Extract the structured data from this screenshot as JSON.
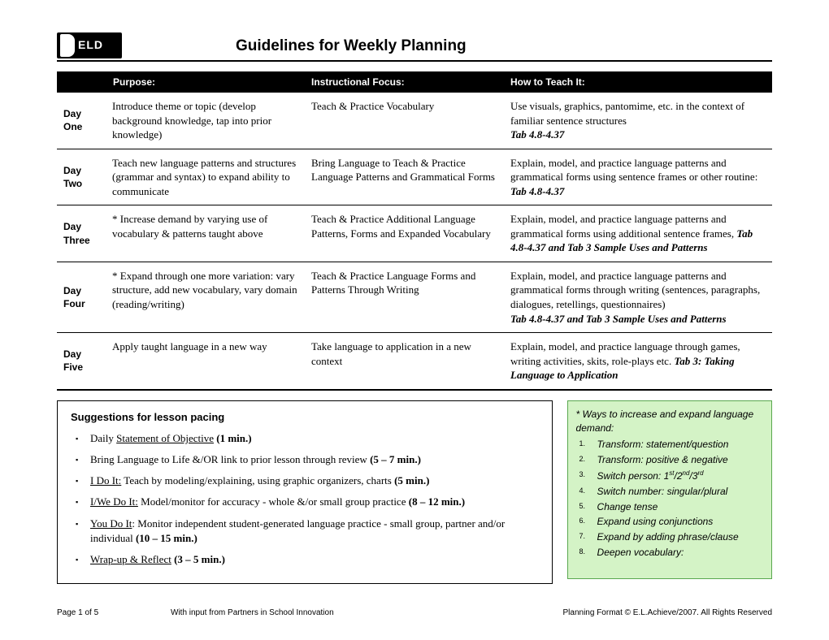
{
  "title": "Guidelines for Weekly Planning",
  "columns": {
    "c1": "",
    "c2": "Purpose:",
    "c3": "Instructional Focus:",
    "c4": "How to Teach It:"
  },
  "rows": [
    {
      "day": "Day One",
      "purpose": "Introduce theme or topic (develop background knowledge, tap into prior knowledge)",
      "focus": "Teach & Practice Vocabulary",
      "how": "Use visuals, graphics, pantomime, etc. in the context of familiar sentence structures",
      "tab": "Tab 4.8-4.37"
    },
    {
      "day": "Day Two",
      "purpose": "Teach new language patterns and structures (grammar and syntax) to expand ability to communicate",
      "focus": "Bring Language to Teach & Practice Language Patterns and Grammatical Forms",
      "how": "Explain, model, and practice language patterns and grammatical forms using sentence frames or other routine: ",
      "tab": "Tab 4.8-4.37"
    },
    {
      "day": "Day Three",
      "purpose": "* Increase demand by varying use of vocabulary & patterns taught above",
      "focus": "Teach & Practice Additional Language Patterns, Forms and Expanded Vocabulary",
      "how": "Explain, model, and practice language patterns and grammatical forms using additional sentence frames, ",
      "tab": "Tab 4.8-4.37 and Tab 3 Sample Uses and Patterns"
    },
    {
      "day": "Day Four",
      "purpose": "* Expand through one more variation: vary structure, add new vocabulary, vary domain (reading/writing)",
      "focus": "Teach & Practice Language Forms and Patterns Through Writing",
      "how": "Explain, model, and practice language patterns and grammatical forms through writing (sentences, paragraphs, dialogues, retellings, questionnaires)",
      "tab": "Tab 4.8-4.37 and Tab 3 Sample Uses and Patterns"
    },
    {
      "day": "Day Five",
      "purpose": "Apply taught language in a new way",
      "focus": "Take language to application in a new context",
      "how": "Explain, model, and practice language through games, writing activities, skits, role-plays etc. ",
      "tab": "Tab 3: Taking Language to Application"
    }
  ],
  "pacing": {
    "title": "Suggestions for lesson pacing",
    "items": [
      {
        "pre": "Daily ",
        "u": "Statement of Objective",
        "post": " ",
        "time": "(1 min.)"
      },
      {
        "pre": "Bring Language to Life &/OR link to prior lesson through review ",
        "u": "",
        "post": "",
        "time": "(5 – 7 min.)"
      },
      {
        "pre": "",
        "u": "I Do It:",
        "post": " Teach by modeling/explaining, using graphic organizers, charts ",
        "time": "(5 min.)"
      },
      {
        "pre": "",
        "u": "I/We Do It:",
        "post": " Model/monitor for accuracy - whole &/or small group practice ",
        "time": "(8 – 12 min.)"
      },
      {
        "pre": "",
        "u": "You Do It",
        "post": ":  Monitor independent student-generated language practice - small group, partner and/or individual ",
        "time": "(10 – 15 min.)"
      },
      {
        "pre": "",
        "u": "Wrap-up & Reflect",
        "post": " ",
        "time": "(3 – 5 min.)"
      }
    ]
  },
  "expand": {
    "title": "* Ways to increase and expand language demand:",
    "items": [
      "Transform: statement/question",
      "Transform: positive & negative",
      "Switch person: 1st/2nd/3rd",
      "Switch number: singular/plural",
      "Change tense",
      "Expand using conjunctions",
      "Expand by adding phrase/clause",
      "Deepen vocabulary:"
    ]
  },
  "footer": {
    "left": "Page 1 of 5",
    "mid": "With input from Partners in School Innovation",
    "right": "Planning Format © E.L.Achieve/2007. All Rights Reserved"
  }
}
